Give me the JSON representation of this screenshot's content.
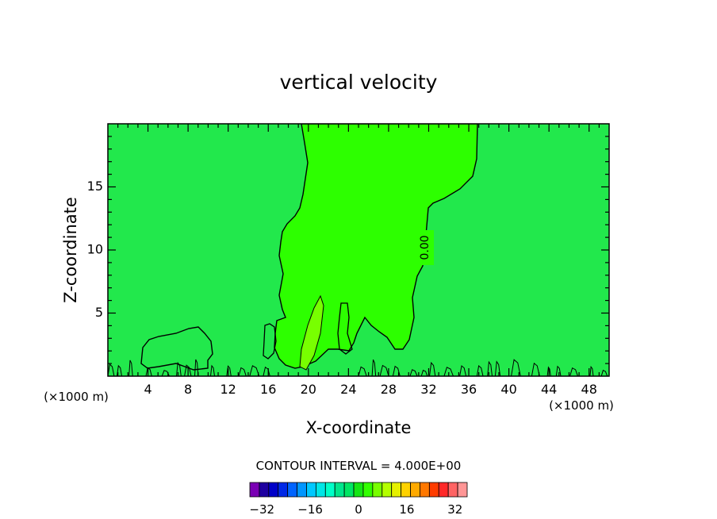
{
  "chart_data": {
    "type": "contour",
    "title": "vertical velocity",
    "xlabel": "X-coordinate",
    "ylabel": "Z-coordinate",
    "x_unit_left": "(×1000 m)",
    "x_unit_right": "(×1000 m)",
    "xlim": [
      0,
      50
    ],
    "ylim": [
      0,
      20
    ],
    "x_ticks": [
      "4",
      "8",
      "12",
      "16",
      "20",
      "24",
      "28",
      "32",
      "36",
      "40",
      "44",
      "48"
    ],
    "y_ticks": [
      "5",
      "10",
      "15"
    ],
    "contour_label": "0.00",
    "contour_interval_text": "CONTOUR INTERVAL = 4.000E+00",
    "colorbar": {
      "tick_labels": [
        "−32",
        "−16",
        "0",
        "16",
        "32"
      ],
      "tick_values": [
        -32,
        -16,
        0,
        16,
        32
      ],
      "range": [
        -36,
        36
      ],
      "colors": [
        "#7a00b4",
        "#1e00a0",
        "#0000c8",
        "#0028e6",
        "#0064ff",
        "#0096ff",
        "#00c8ff",
        "#00e6e6",
        "#00ffc8",
        "#00e68c",
        "#00e664",
        "#14e614",
        "#32ff00",
        "#78ff00",
        "#b4ff00",
        "#e6f000",
        "#ffd200",
        "#ffaa00",
        "#ff7800",
        "#ff3c00",
        "#ff2828",
        "#ff6464",
        "#ff9696"
      ]
    },
    "fill_colors": {
      "background": "#22e84c",
      "updraft": "#2dff00",
      "core": "#78ff00"
    }
  }
}
